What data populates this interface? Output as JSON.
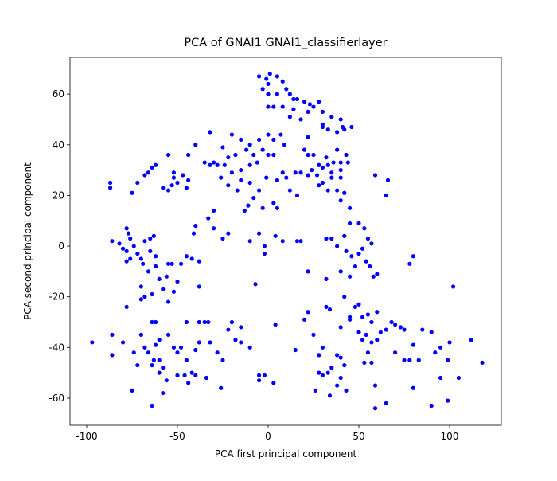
{
  "chart_data": {
    "type": "scatter",
    "title": "PCA of GNAI1 GNAI1_classifierlayer",
    "x_label": "PCA first principal component",
    "y_label": "PCA second principal component",
    "xlim": [
      -109.2,
      128.5
    ],
    "ylim": [
      -70.7,
      74.5
    ],
    "xticks": [
      -100,
      -50,
      0,
      50,
      100
    ],
    "yticks": [
      -60,
      -40,
      -20,
      0,
      20,
      40,
      60
    ],
    "x": [
      -5,
      -1,
      1,
      5,
      0,
      8,
      10,
      12,
      -3,
      0,
      5,
      14,
      16,
      20,
      23,
      28,
      25,
      0,
      3,
      8,
      14,
      22,
      30,
      35,
      40,
      30,
      33,
      38,
      41,
      46,
      42,
      18,
      12,
      30,
      -32,
      -20,
      -15,
      -10,
      -5,
      0,
      3,
      7,
      9,
      20,
      22,
      -25,
      -22,
      -18,
      -12,
      -8,
      -3,
      0,
      3,
      -35,
      -32,
      -30,
      -28,
      -24,
      -20,
      -15,
      -10,
      -6,
      22,
      25,
      28,
      32,
      36,
      40,
      43,
      38,
      24,
      27,
      30,
      33,
      35,
      40,
      44,
      15,
      18,
      22,
      8,
      5,
      10,
      -22,
      -17,
      -15,
      -10,
      -5,
      -1,
      -26,
      30,
      35,
      40,
      28,
      33,
      38,
      42,
      12,
      16,
      40,
      45,
      -8,
      -11,
      -13,
      -3,
      -30,
      -33,
      -40,
      3,
      5,
      59,
      66,
      65,
      50,
      53,
      55,
      57,
      45,
      42,
      35,
      32,
      38,
      43,
      46,
      50,
      52,
      54,
      56,
      48,
      40,
      45,
      32,
      22,
      18,
      16,
      8,
      4,
      -2,
      -5,
      -10,
      -25,
      -22,
      -30,
      -2,
      -7,
      80,
      78,
      102,
      58,
      60,
      -87,
      -87,
      -75,
      -72,
      -68,
      -66,
      -64,
      -62,
      -58,
      -55,
      -53,
      -52,
      -52,
      -50,
      -47,
      -45,
      -44,
      -40,
      -44,
      -55,
      -86,
      -82,
      -80,
      -78,
      -77,
      -76,
      -78,
      -78,
      -76,
      -74,
      -72,
      -70,
      -69,
      -68,
      -65,
      -63,
      -65,
      -62,
      -62,
      -60,
      -58,
      -55,
      -53,
      -48,
      -45,
      -42,
      -38,
      -38,
      -56,
      -52,
      -50,
      -66,
      -70,
      -68,
      -70,
      -64,
      -55,
      -78,
      -41,
      -97,
      -86,
      -86,
      -80,
      -74,
      -72,
      -70,
      -68,
      -64,
      -62,
      -66,
      -62,
      -60,
      -58,
      -55,
      -52,
      -50,
      -48,
      -45,
      -42,
      -40,
      -38,
      -35,
      -33,
      -32,
      -28,
      -25,
      -22,
      -20,
      -18,
      -15,
      -10,
      -38,
      -45,
      -60,
      -63,
      -60,
      -56,
      -50,
      -46,
      -44,
      -40,
      -34,
      -26,
      -58,
      -64,
      -75,
      -64,
      -5,
      -5,
      -2,
      3,
      4,
      15,
      20,
      22,
      25,
      28,
      30,
      32,
      34,
      28,
      30,
      33,
      35,
      38,
      40,
      42,
      40,
      38,
      43,
      26,
      34,
      40,
      45,
      48,
      50,
      52,
      55,
      57,
      60,
      50,
      52,
      54,
      57,
      60,
      62,
      55,
      57,
      53,
      65,
      68,
      70,
      73,
      75,
      70,
      75,
      78,
      83,
      80,
      85,
      90,
      92,
      95,
      100,
      99,
      90,
      99,
      95,
      105,
      112,
      118,
      80,
      65,
      59,
      59,
      45,
      42,
      -15
    ],
    "series": [
      {
        "color": "#0000ff",
        "values": [
          67,
          66,
          68,
          67,
          64,
          65,
          62,
          60,
          62,
          60,
          60,
          58,
          58,
          57,
          56,
          57,
          55,
          55,
          55,
          55,
          54,
          53,
          53,
          51,
          50,
          48,
          46,
          45,
          47,
          47,
          46,
          50,
          51,
          47,
          45,
          44,
          42,
          40,
          42,
          44,
          42,
          44,
          40,
          38,
          43,
          39,
          35,
          36,
          38,
          36,
          38,
          36,
          36,
          33,
          32,
          33,
          32,
          32,
          29,
          30,
          32,
          33,
          36,
          36,
          32,
          35,
          33,
          33,
          36,
          38,
          30,
          28,
          31,
          32,
          29,
          30,
          33,
          29,
          29,
          28,
          29,
          26,
          27,
          24,
          22,
          26,
          25,
          22,
          27,
          27,
          25,
          27,
          27,
          24,
          22,
          22,
          21,
          22,
          20,
          18,
          15,
          19,
          16,
          14,
          15,
          14,
          11,
          8,
          17,
          15,
          28,
          26,
          20,
          9,
          7,
          3,
          1,
          9,
          4,
          3,
          3,
          0,
          -2,
          -4,
          -3,
          -1,
          -6,
          -8,
          -8,
          -10,
          -12,
          -13,
          -10,
          2,
          2,
          2,
          4,
          0,
          5,
          2,
          3,
          5,
          7,
          -3,
          -15,
          -4,
          -7,
          -16,
          -12,
          -11,
          25,
          23,
          21,
          25,
          28,
          29,
          31,
          32,
          23,
          22,
          24,
          27,
          29,
          25,
          28,
          23,
          26,
          40,
          36,
          36,
          2,
          1,
          -1,
          7,
          5,
          3,
          -2,
          -6,
          -5,
          0,
          -3,
          -5,
          -7,
          2,
          3,
          4,
          -2,
          -4,
          -8,
          -13,
          -17,
          -7,
          -7,
          -7,
          -4,
          -5,
          -6,
          -16,
          -12,
          -18,
          -14,
          -10,
          -16,
          -20,
          -21,
          -19,
          -22,
          -24,
          5,
          -38,
          -35,
          -43,
          -38,
          -42,
          -47,
          -35,
          -40,
          -30,
          -30,
          -42,
          -39,
          -37,
          -48,
          -35,
          -40,
          -42,
          -40,
          -45,
          -50,
          -41,
          -38,
          -30,
          -30,
          -38,
          -42,
          -45,
          -33,
          -30,
          -37,
          -38,
          -40,
          -30,
          -30,
          -45,
          -45,
          -50,
          -53,
          -51,
          -51,
          -54,
          -51,
          -52,
          -56,
          -58,
          -63,
          -57,
          -47,
          -51,
          -53,
          -51,
          -54,
          -31,
          -41,
          -29,
          -26,
          -35,
          -43,
          -40,
          -24,
          -25,
          -50,
          -51,
          -50,
          -48,
          -43,
          -44,
          -47,
          -52,
          -55,
          -57,
          -57,
          -59,
          -32,
          -29,
          -24,
          -23,
          -28,
          -27,
          -30,
          -26,
          -34,
          -37,
          -35,
          -38,
          -37,
          -34,
          -42,
          -46,
          -46,
          -33,
          -30,
          -31,
          -32,
          -33,
          -42,
          -45,
          -45,
          -45,
          -39,
          -33,
          -34,
          -42,
          -40,
          -38,
          -45,
          -63,
          -61,
          -52,
          -52,
          -37,
          -46,
          -56,
          -62,
          -55,
          -64,
          -28,
          -20,
          -32
        ]
      }
    ]
  }
}
